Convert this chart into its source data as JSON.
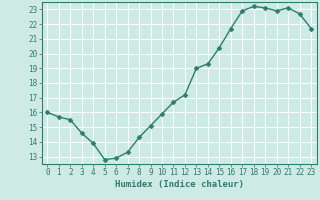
{
  "x": [
    0,
    1,
    2,
    3,
    4,
    5,
    6,
    7,
    8,
    9,
    10,
    11,
    12,
    13,
    14,
    15,
    16,
    17,
    18,
    19,
    20,
    21,
    22,
    23
  ],
  "y": [
    16.0,
    15.7,
    15.5,
    14.6,
    13.9,
    12.8,
    12.9,
    13.3,
    14.3,
    15.1,
    15.9,
    16.7,
    17.2,
    19.0,
    19.3,
    20.4,
    21.7,
    22.9,
    23.2,
    23.1,
    22.9,
    23.1,
    22.7,
    21.7
  ],
  "xlabel": "Humidex (Indice chaleur)",
  "xlim": [
    -0.5,
    23.5
  ],
  "ylim": [
    12.5,
    23.5
  ],
  "yticks": [
    13,
    14,
    15,
    16,
    17,
    18,
    19,
    20,
    21,
    22,
    23
  ],
  "xticks": [
    0,
    1,
    2,
    3,
    4,
    5,
    6,
    7,
    8,
    9,
    10,
    11,
    12,
    13,
    14,
    15,
    16,
    17,
    18,
    19,
    20,
    21,
    22,
    23
  ],
  "line_color": "#2d7d6e",
  "marker": "D",
  "marker_size": 2.5,
  "bg_color": "#cdeae4",
  "grid_color": "#ffffff",
  "tick_color": "#2d7d6e",
  "label_color": "#2d7d6e",
  "line_width": 1.0,
  "tick_fontsize": 5.5,
  "xlabel_fontsize": 6.5
}
